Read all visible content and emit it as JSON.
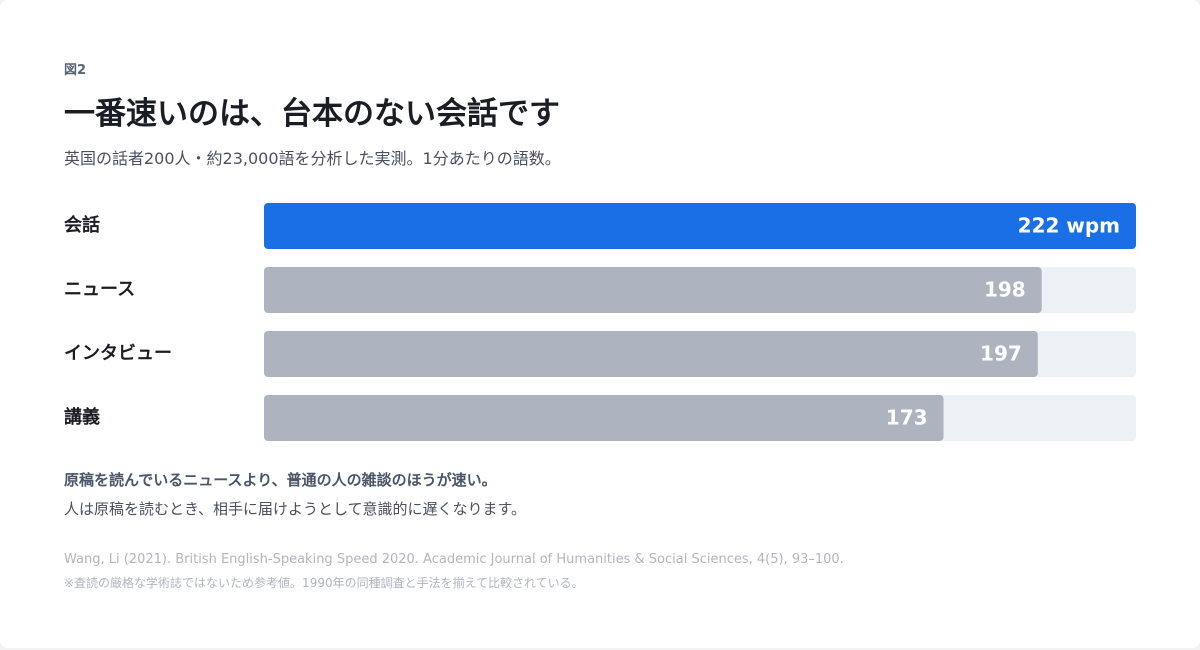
{
  "chart_data": {
    "type": "bar",
    "orientation": "horizontal",
    "label": "図2",
    "title": "一番速いのは、台本のない会話です",
    "subtitle": "英国の話者200人・約23,000語を分析した実測。1分あたりの語数。",
    "categories": [
      "会話",
      "ニュース",
      "インタビュー",
      "講義"
    ],
    "values": [
      222,
      198,
      197,
      173
    ],
    "value_labels": [
      "222 wpm",
      "198",
      "197",
      "173"
    ],
    "colors": [
      "#1b6fe6",
      "#adb4bf",
      "#adb4bf",
      "#adb4bf"
    ],
    "track_color": "#edf0f4",
    "xlim": [
      0,
      222
    ],
    "takeaway": "原稿を読んでいるニュースより、普通の人の雑談のほうが速い。",
    "takeaway_detail": "人は原稿を読むとき、相手に届けようとして意識的に遅くなります。",
    "source": "Wang, Li (2021). British English-Speaking Speed 2020. Academic Journal of Humanities & Social Sciences, 4(5), 93–100.",
    "note": "※査読の厳格な学術誌ではないため参考値。1990年の同種調査と手法を揃えて比較されている。"
  }
}
